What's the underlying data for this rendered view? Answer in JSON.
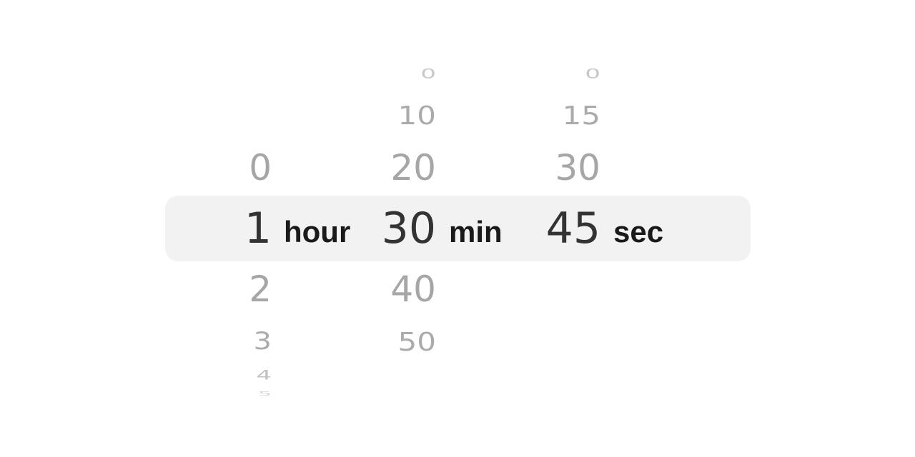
{
  "picker": {
    "hours": {
      "unit": "hour",
      "items_above": [
        "0"
      ],
      "selected": "1",
      "items_below": [
        "2",
        "3",
        "4",
        "5"
      ]
    },
    "minutes": {
      "unit": "min",
      "items_above": [
        "0",
        "10",
        "20"
      ],
      "selected": "30",
      "items_below": [
        "40",
        "50"
      ]
    },
    "seconds": {
      "unit": "sec",
      "items_above": [
        "0",
        "15",
        "30"
      ],
      "selected": "45",
      "items_below": []
    }
  }
}
